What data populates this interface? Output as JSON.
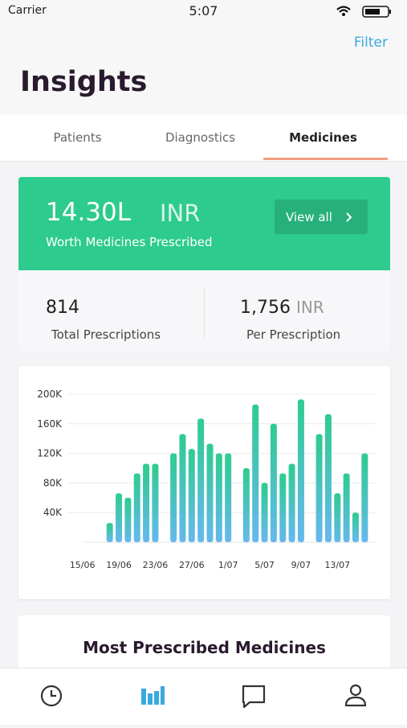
{
  "status_bar": {
    "carrier": "Carrier",
    "time": "5:07"
  },
  "header": {
    "filter": "Filter",
    "title": "Insights"
  },
  "tabs": [
    "Patients",
    "Diagnostics",
    "Medicines"
  ],
  "summary": {
    "amount": "14.30L",
    "currency": "INR",
    "caption": "Worth Medicines Prescribed",
    "button": "View all"
  },
  "stats": [
    {
      "value": "814",
      "label": "Total Prescriptions"
    },
    {
      "value": "1,756",
      "unit": "INR",
      "label": "Per Prescription"
    }
  ],
  "chart_data": {
    "type": "bar",
    "categories": [
      "15/06",
      null,
      null,
      null,
      "19/06",
      null,
      null,
      null,
      "23/06",
      null,
      null,
      null,
      "27/06",
      null,
      null,
      null,
      "1/07",
      null,
      null,
      null,
      "5/07",
      null,
      null,
      null,
      "9/07",
      null,
      null,
      null,
      "13/07",
      null,
      null,
      null
    ],
    "values": [
      null,
      null,
      null,
      26000,
      66000,
      60000,
      93000,
      106000,
      106000,
      null,
      120000,
      146000,
      126000,
      167000,
      133000,
      120000,
      120000,
      null,
      100000,
      186000,
      80000,
      160000,
      93000,
      106000,
      193000,
      null,
      146000,
      173000,
      66000,
      93000,
      40000,
      120000
    ],
    "color": [
      "#2ecc8f",
      "#66b8ef"
    ],
    "ylim": [
      0,
      200000
    ],
    "yticks": [
      {
        "value": 40000,
        "label": "40K"
      },
      {
        "value": 80000,
        "label": "80K"
      },
      {
        "value": 120000,
        "label": "120K"
      },
      {
        "value": 160000,
        "label": "160K"
      },
      {
        "value": 200000,
        "label": "200K"
      }
    ],
    "grid": true
  },
  "section_title": "Most Prescribed Medicines"
}
